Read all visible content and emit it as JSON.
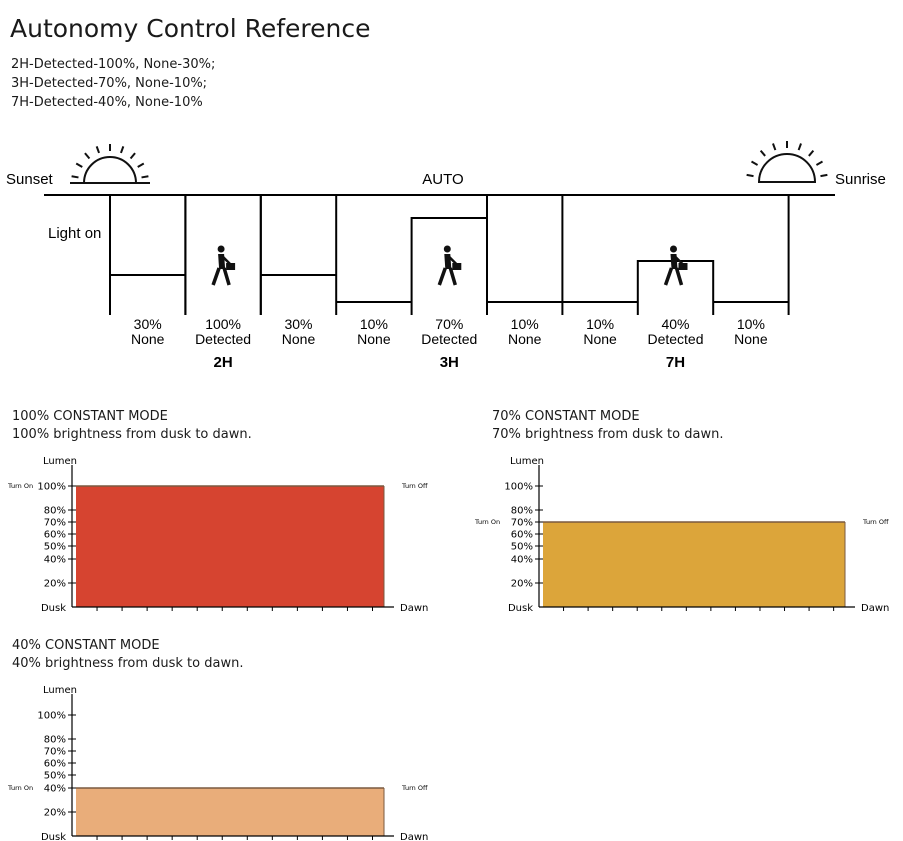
{
  "title": "Autonomy Control Reference",
  "notes": [
    "2H-Detected-100%, None-30%;",
    "3H-Detected-70%, None-10%;",
    "7H-Detected-40%, None-10%"
  ],
  "timeline": {
    "sunset_label": "Sunset",
    "sunrise_label": "Sunrise",
    "auto_label": "AUTO",
    "light_on_label": "Light on",
    "segments": [
      {
        "percent": "30%",
        "state": "None",
        "level": 30,
        "detected": false
      },
      {
        "percent": "100%",
        "state": "Detected",
        "level": 100,
        "detected": true
      },
      {
        "percent": "30%",
        "state": "None",
        "level": 30,
        "detected": false
      },
      {
        "percent": "10%",
        "state": "None",
        "level": 10,
        "detected": false
      },
      {
        "percent": "70%",
        "state": "Detected",
        "level": 70,
        "detected": true
      },
      {
        "percent": "10%",
        "state": "None",
        "level": 10,
        "detected": false
      },
      {
        "percent": "10%",
        "state": "None",
        "level": 10,
        "detected": false
      },
      {
        "percent": "40%",
        "state": "Detected",
        "level": 40,
        "detected": true
      },
      {
        "percent": "10%",
        "state": "None",
        "level": 10,
        "detected": false
      }
    ],
    "hours": [
      {
        "label": "2H",
        "segment": 1
      },
      {
        "label": "3H",
        "segment": 4
      },
      {
        "label": "7H",
        "segment": 7
      }
    ]
  },
  "modes": [
    {
      "title": "100% CONSTANT MODE",
      "desc": "100% brightness from dusk to dawn.",
      "color": "#d64430",
      "chart_data": {
        "type": "area",
        "title": "100% CONSTANT MODE",
        "ylabel": "Lumen",
        "x": [
          "Dusk",
          "Dawn"
        ],
        "y_ticks": [
          "100%",
          "80%",
          "70%",
          "60%",
          "50%",
          "40%",
          "20%"
        ],
        "values": [
          100,
          100
        ],
        "ylim": [
          0,
          100
        ],
        "turn_on": "Turn On",
        "turn_off": "Turn Off"
      }
    },
    {
      "title": "70% CONSTANT MODE",
      "desc": "70% brightness from dusk to dawn.",
      "color": "#dca53a",
      "chart_data": {
        "type": "area",
        "title": "70% CONSTANT MODE",
        "ylabel": "Lumen",
        "x": [
          "Dusk",
          "Dawn"
        ],
        "y_ticks": [
          "100%",
          "80%",
          "70%",
          "60%",
          "50%",
          "40%",
          "20%"
        ],
        "values": [
          70,
          70
        ],
        "ylim": [
          0,
          100
        ],
        "turn_on": "Turn On",
        "turn_off": "Turn Off"
      }
    },
    {
      "title": "40% CONSTANT MODE",
      "desc": "40% brightness from dusk to dawn.",
      "color": "#e9ad7a",
      "chart_data": {
        "type": "area",
        "title": "40% CONSTANT MODE",
        "ylabel": "Lumen",
        "x": [
          "Dusk",
          "Dawn"
        ],
        "y_ticks": [
          "100%",
          "80%",
          "70%",
          "60%",
          "50%",
          "40%",
          "20%"
        ],
        "values": [
          40,
          40
        ],
        "ylim": [
          0,
          100
        ],
        "turn_on": "Turn On",
        "turn_off": "Turn Off"
      }
    }
  ]
}
